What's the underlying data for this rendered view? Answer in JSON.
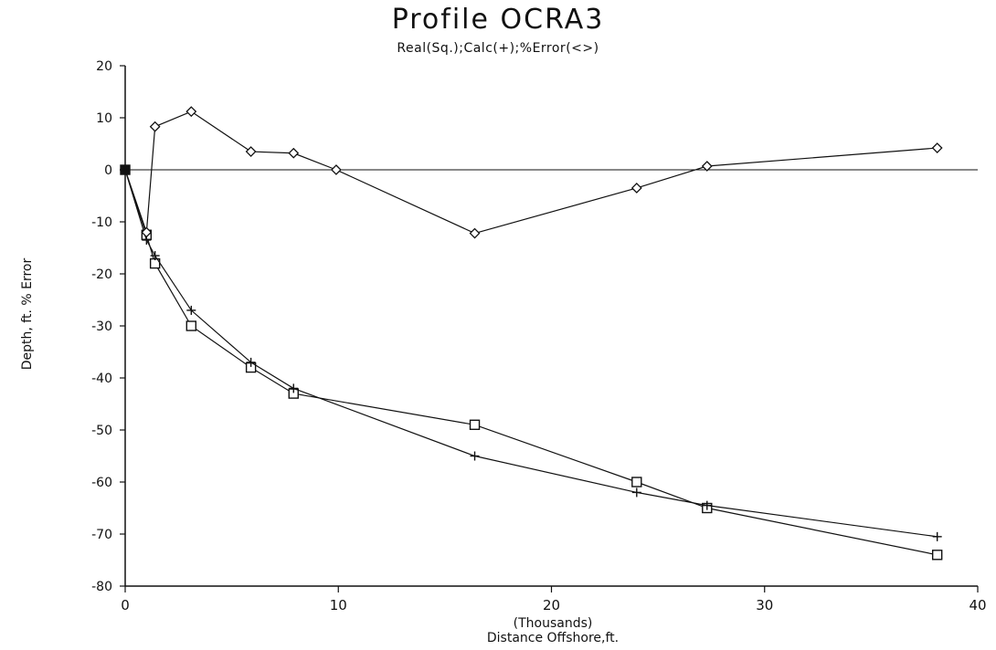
{
  "chart_data": {
    "type": "line",
    "title": "Profile OCRA3",
    "subtitle": "Real(Sq.);Calc(+);%Error(<>)",
    "xlabel": "Distance Offshore,ft.",
    "xlabel_units": "(Thousands)",
    "ylabel": "Depth, ft.    %    Error",
    "xlim": [
      0,
      40
    ],
    "ylim": [
      -80,
      20
    ],
    "x_ticks": [
      0,
      10,
      20,
      30,
      40
    ],
    "y_ticks": [
      20,
      10,
      0,
      -10,
      -20,
      -30,
      -40,
      -50,
      -60,
      -70,
      -80
    ],
    "grid": false,
    "series": [
      {
        "name": "Real",
        "marker": "square",
        "x": [
          0,
          1.0,
          1.4,
          3.1,
          5.9,
          7.9,
          16.4,
          24.0,
          27.3,
          38.1
        ],
        "y": [
          0,
          -12.5,
          -18,
          -30,
          -38,
          -43,
          -49,
          -60,
          -65,
          -74
        ]
      },
      {
        "name": "Calc",
        "marker": "plus",
        "x": [
          0,
          1.0,
          1.4,
          3.1,
          5.9,
          7.9,
          16.4,
          24.0,
          27.3,
          38.1
        ],
        "y": [
          0,
          -13.5,
          -16.5,
          -27,
          -37,
          -42,
          -55,
          -62,
          -64.5,
          -70.5
        ]
      },
      {
        "name": "%Error",
        "marker": "diamond",
        "x": [
          0,
          1.0,
          1.4,
          3.1,
          5.9,
          7.9,
          9.9,
          16.4,
          24.0,
          27.3,
          38.1
        ],
        "y": [
          0,
          -12,
          8.3,
          11.2,
          3.5,
          3.2,
          0,
          -12.2,
          -3.5,
          0.7,
          4.2
        ]
      }
    ]
  }
}
